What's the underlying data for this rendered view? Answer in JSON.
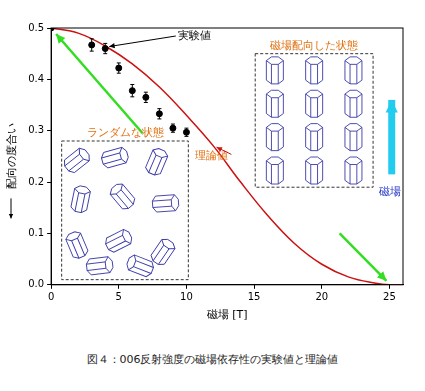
{
  "chart_data": {
    "type": "scatter",
    "x_label": "磁場 [T]",
    "y_label": "配向の度合い",
    "xlim": [
      0,
      26
    ],
    "xticks": [
      0,
      5,
      10,
      15,
      20,
      25
    ],
    "ylim": [
      0,
      0.5
    ],
    "yticks": [
      {
        "value": 0,
        "label": "0.0"
      },
      {
        "value": 0.1,
        "label": "0.1"
      },
      {
        "value": 0.2,
        "label": "0.2"
      },
      {
        "value": 0.3,
        "label": "0.3"
      },
      {
        "value": 0.4,
        "label": "0.4"
      },
      {
        "value": 0.5,
        "label": "0.5"
      }
    ],
    "grid": false,
    "series": [
      {
        "name": "実験値",
        "type": "scatter",
        "color": "#000000",
        "marker": "circle",
        "x": [
          0,
          3,
          4,
          5,
          6,
          7,
          8,
          9,
          10
        ],
        "values": [
          0.5,
          0.467,
          0.46,
          0.422,
          0.378,
          0.365,
          0.333,
          0.305,
          0.297
        ],
        "errors": [
          0,
          0.012,
          0.01,
          0.01,
          0.012,
          0.01,
          0.01,
          0.008,
          0.008
        ]
      },
      {
        "name": "理論値",
        "type": "line",
        "color": "#cc1111",
        "x": [
          0,
          2,
          4,
          6,
          8,
          10,
          12,
          14,
          16,
          18,
          20,
          22,
          24,
          25,
          26
        ],
        "values": [
          0.5,
          0.49,
          0.465,
          0.43,
          0.385,
          0.33,
          0.27,
          0.2,
          0.135,
          0.08,
          0.04,
          0.015,
          0.003,
          0.0,
          0.0
        ]
      }
    ],
    "annotations": [
      "ランダムな状態",
      "磁場配向した状態",
      "磁場"
    ],
    "caption": "図４：006反射強度の磁場依存性の実験値と理論値"
  }
}
